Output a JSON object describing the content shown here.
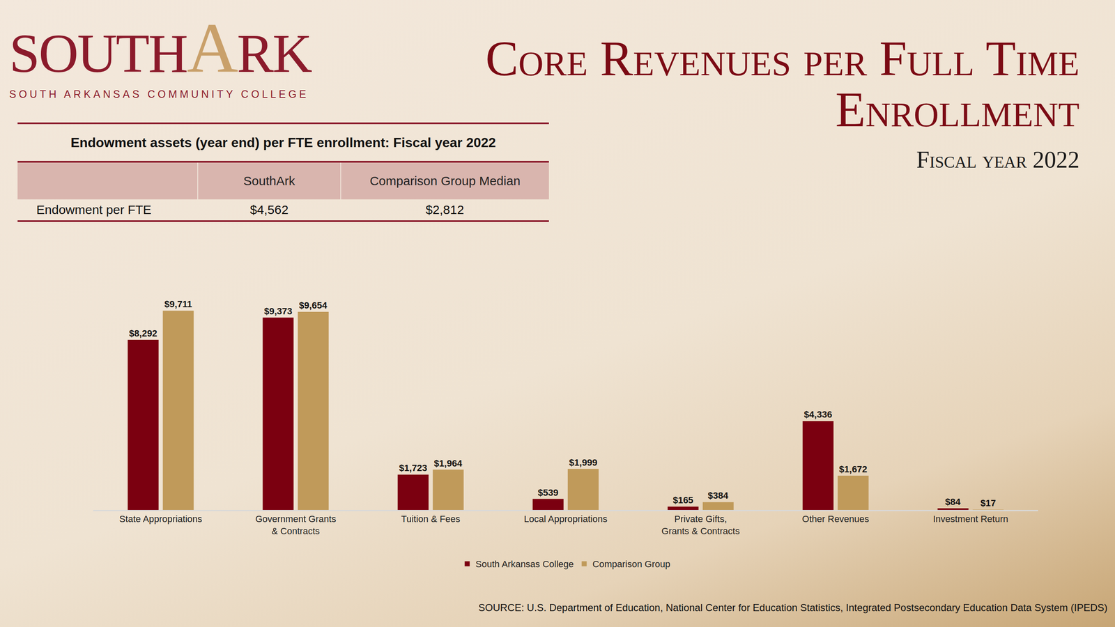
{
  "logo": {
    "left": "SOUTH",
    "letter": "A",
    "right": "RK",
    "tagline": "SOUTH ARKANSAS COMMUNITY COLLEGE"
  },
  "title": "Core Revenues per Full Time Enrollment",
  "subtitle": "Fiscal year 2022",
  "table": {
    "title": "Endowment assets (year end) per FTE enrollment: Fiscal year 2022",
    "columns": [
      "SouthArk",
      "Comparison Group Median"
    ],
    "rows": [
      [
        "Endowment per FTE",
        "$4,562",
        "$2,812"
      ]
    ]
  },
  "chart_data": {
    "type": "bar",
    "categories": [
      "State Appropriations",
      "Government Grants & Contracts",
      "Tuition & Fees",
      "Local Appropriations",
      "Private Gifts, Grants & Contracts",
      "Other Revenues",
      "Investment Return"
    ],
    "series": [
      {
        "name": "South Arkansas College",
        "color": "#7b0010",
        "values": [
          8292,
          9373,
          1723,
          539,
          165,
          4336,
          84
        ],
        "value_labels": [
          "$8,292",
          "$9,373",
          "$1,723",
          "$539",
          "$165",
          "$4,336",
          "$84"
        ]
      },
      {
        "name": "Comparison Group",
        "color": "#c09a5a",
        "values": [
          9711,
          9654,
          1964,
          1999,
          384,
          1672,
          17
        ],
        "value_labels": [
          "$9,711",
          "$9,654",
          "$1,964",
          "$1,999",
          "$384",
          "$1,672",
          "$17"
        ]
      }
    ],
    "ylim": [
      0,
      11000
    ],
    "grid": false,
    "legend": "bottom",
    "data_labels": true,
    "tick_labels": "x"
  },
  "source": "SOURCE: U.S. Department of Education, National Center for Education Statistics, Integrated Postsecondary Education Data System (IPEDS)"
}
